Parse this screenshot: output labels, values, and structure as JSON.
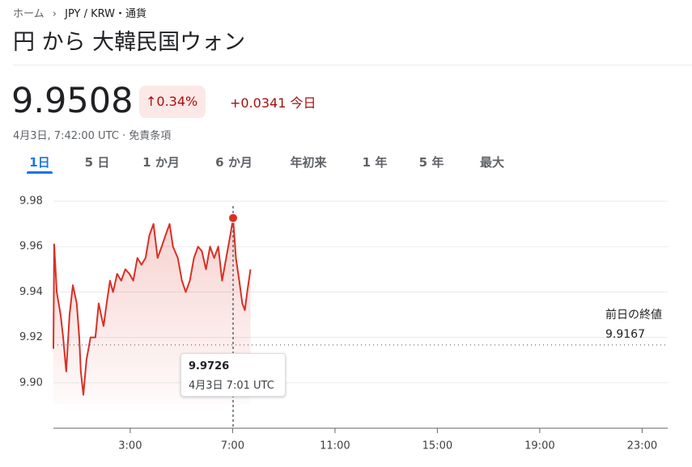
{
  "breadcrumb": {
    "home": "ホーム",
    "current": "JPY / KRW・通貨"
  },
  "header": {
    "title": "円 から 大韓民国ウォン",
    "price": "9.9508",
    "change_pct": "0.34%",
    "change_abs": "+0.0341",
    "change_period": "今日",
    "timestamp": "4月3日, 7:42:00 UTC · 免責条項"
  },
  "tabs": [
    "1日",
    "5 日",
    "1 か月",
    "6 か月",
    "年初来",
    "1 年",
    "5 年",
    "最大"
  ],
  "chart_data": {
    "type": "line",
    "x": [
      0,
      0.03,
      0.13,
      0.28,
      0.38,
      0.5,
      0.63,
      0.76,
      0.91,
      1.01,
      1.07,
      1.17,
      1.29,
      1.45,
      1.64,
      1.77,
      1.86,
      1.96,
      2.08,
      2.21,
      2.33,
      2.49,
      2.65,
      2.81,
      2.97,
      3.12,
      3.28,
      3.44,
      3.6,
      3.75,
      3.91,
      4.07,
      4.23,
      4.38,
      4.54,
      4.67,
      4.86,
      5.02,
      5.17,
      5.33,
      5.49,
      5.65,
      5.8,
      5.96,
      6.12,
      6.28,
      6.44,
      6.59,
      6.75,
      6.91,
      7.02,
      7.13,
      7.26,
      7.38,
      7.48,
      7.57,
      7.7
    ],
    "series": [
      {
        "color": "#d93025",
        "values": [
          9.915,
          9.961,
          9.94,
          9.93,
          9.92,
          9.905,
          9.93,
          9.943,
          9.935,
          9.92,
          9.905,
          9.8947,
          9.91,
          9.92,
          9.92,
          9.935,
          9.93,
          9.925,
          9.935,
          9.945,
          9.94,
          9.948,
          9.945,
          9.95,
          9.948,
          9.945,
          9.955,
          9.952,
          9.955,
          9.965,
          9.97,
          9.955,
          9.96,
          9.965,
          9.97,
          9.96,
          9.955,
          9.945,
          9.94,
          9.945,
          9.955,
          9.96,
          9.958,
          9.95,
          9.96,
          9.955,
          9.96,
          9.945,
          9.955,
          9.965,
          9.9726,
          9.955,
          9.945,
          9.935,
          9.932,
          9.94,
          9.95
        ]
      }
    ],
    "xlim": [
      0,
      24
    ],
    "xticks": [
      {
        "value": 3,
        "label": "3:00"
      },
      {
        "value": 7,
        "label": "7:00"
      },
      {
        "value": 11,
        "label": "11:00"
      },
      {
        "value": 15,
        "label": "15:00"
      },
      {
        "value": 19,
        "label": "19:00"
      },
      {
        "value": 23,
        "label": "23:00"
      }
    ],
    "ylim": [
      9.88,
      9.985
    ],
    "yticks": [
      9.98,
      9.96,
      9.94,
      9.92,
      {
        "value": 9.9,
        "label": "9.90"
      }
    ],
    "grid": true,
    "previous_close": {
      "label": "前日の終値",
      "value": 9.9167
    },
    "tooltip": {
      "value": 9.9726,
      "label": "4月3日 7:01 UTC"
    }
  }
}
